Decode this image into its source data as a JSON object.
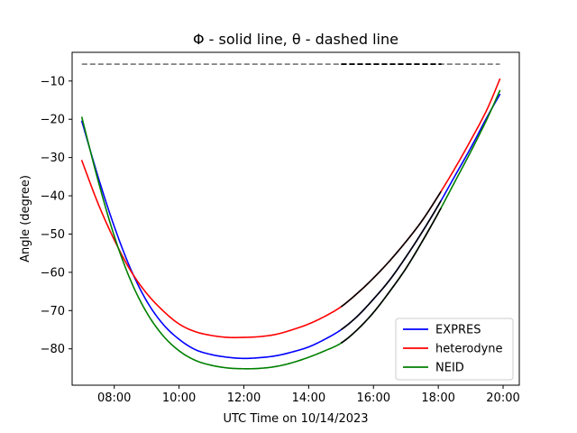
{
  "chart_data": {
    "type": "line",
    "title": "Φ - solid line, θ - dashed line",
    "xlabel": "UTC Time on 10/14/2023",
    "ylabel": "Angle (degree)",
    "xlim": [
      6.7,
      20.5
    ],
    "ylim": [
      -89.5,
      -2.5
    ],
    "x_ticks": [
      {
        "value": 8,
        "label": "08:00"
      },
      {
        "value": 10,
        "label": "10:00"
      },
      {
        "value": 12,
        "label": "12:00"
      },
      {
        "value": 14,
        "label": "14:00"
      },
      {
        "value": 16,
        "label": "16:00"
      },
      {
        "value": 18,
        "label": "18:00"
      },
      {
        "value": 20,
        "label": "20:00"
      }
    ],
    "y_ticks": [
      {
        "value": -10,
        "label": "−10"
      },
      {
        "value": -20,
        "label": "−20"
      },
      {
        "value": -30,
        "label": "−30"
      },
      {
        "value": -40,
        "label": "−40"
      },
      {
        "value": -50,
        "label": "−50"
      },
      {
        "value": -60,
        "label": "−60"
      },
      {
        "value": -70,
        "label": "−70"
      },
      {
        "value": -80,
        "label": "−80"
      }
    ],
    "grid": false,
    "legend_position": "lower-right",
    "series": [
      {
        "name": "EXPRES",
        "color": "#0000ff",
        "style": "solid",
        "x": [
          7.0,
          7.5,
          8.0,
          8.5,
          9.0,
          9.5,
          10.0,
          10.5,
          11.0,
          11.5,
          12.0,
          12.5,
          13.0,
          13.5,
          14.0,
          14.5,
          15.0,
          15.5,
          16.0,
          16.5,
          17.0,
          17.5,
          18.0,
          18.5,
          19.0,
          19.5,
          19.9
        ],
        "y": [
          -20.5,
          -35.0,
          -48.0,
          -59.0,
          -67.5,
          -73.5,
          -77.5,
          -80.2,
          -81.5,
          -82.2,
          -82.5,
          -82.3,
          -81.8,
          -80.8,
          -79.5,
          -77.5,
          -75.0,
          -71.5,
          -67.0,
          -62.0,
          -56.0,
          -49.5,
          -42.5,
          -35.0,
          -27.5,
          -19.5,
          -13.5
        ]
      },
      {
        "name": "heterodyne",
        "color": "#ff0000",
        "style": "solid",
        "x": [
          7.0,
          7.5,
          8.0,
          8.5,
          9.0,
          9.5,
          10.0,
          10.5,
          11.0,
          11.5,
          12.0,
          12.5,
          13.0,
          13.5,
          14.0,
          14.5,
          15.0,
          15.5,
          16.0,
          16.5,
          17.0,
          17.5,
          18.0,
          18.5,
          19.0,
          19.5,
          19.9
        ],
        "y": [
          -30.8,
          -42.0,
          -51.5,
          -59.5,
          -65.5,
          -70.0,
          -73.5,
          -75.5,
          -76.5,
          -77.0,
          -77.0,
          -76.8,
          -76.2,
          -75.0,
          -73.5,
          -71.5,
          -69.0,
          -65.5,
          -61.5,
          -57.0,
          -52.0,
          -46.5,
          -40.0,
          -33.0,
          -25.5,
          -17.5,
          -9.5
        ]
      },
      {
        "name": "NEID",
        "color": "#008000",
        "style": "solid",
        "x": [
          7.0,
          7.5,
          8.0,
          8.5,
          9.0,
          9.5,
          10.0,
          10.5,
          11.0,
          11.5,
          12.0,
          12.5,
          13.0,
          13.5,
          14.0,
          14.5,
          15.0,
          15.5,
          16.0,
          16.5,
          17.0,
          17.5,
          18.0,
          18.5,
          19.0,
          19.5,
          19.9
        ],
        "y": [
          -19.5,
          -36.0,
          -50.5,
          -62.0,
          -70.5,
          -76.5,
          -80.5,
          -83.0,
          -84.3,
          -85.0,
          -85.2,
          -85.1,
          -84.6,
          -83.6,
          -82.2,
          -80.5,
          -78.5,
          -75.0,
          -70.5,
          -65.0,
          -59.0,
          -52.0,
          -44.5,
          -36.5,
          -28.5,
          -20.0,
          -12.5
        ]
      }
    ],
    "theta_line": {
      "color": "#808080",
      "style": "dashed",
      "x": [
        7.0,
        19.9
      ],
      "y": [
        -5.6,
        -5.6
      ]
    },
    "highlight_segments": {
      "color": "#000000",
      "x_start": 15.0,
      "x_end": 18.1
    }
  }
}
